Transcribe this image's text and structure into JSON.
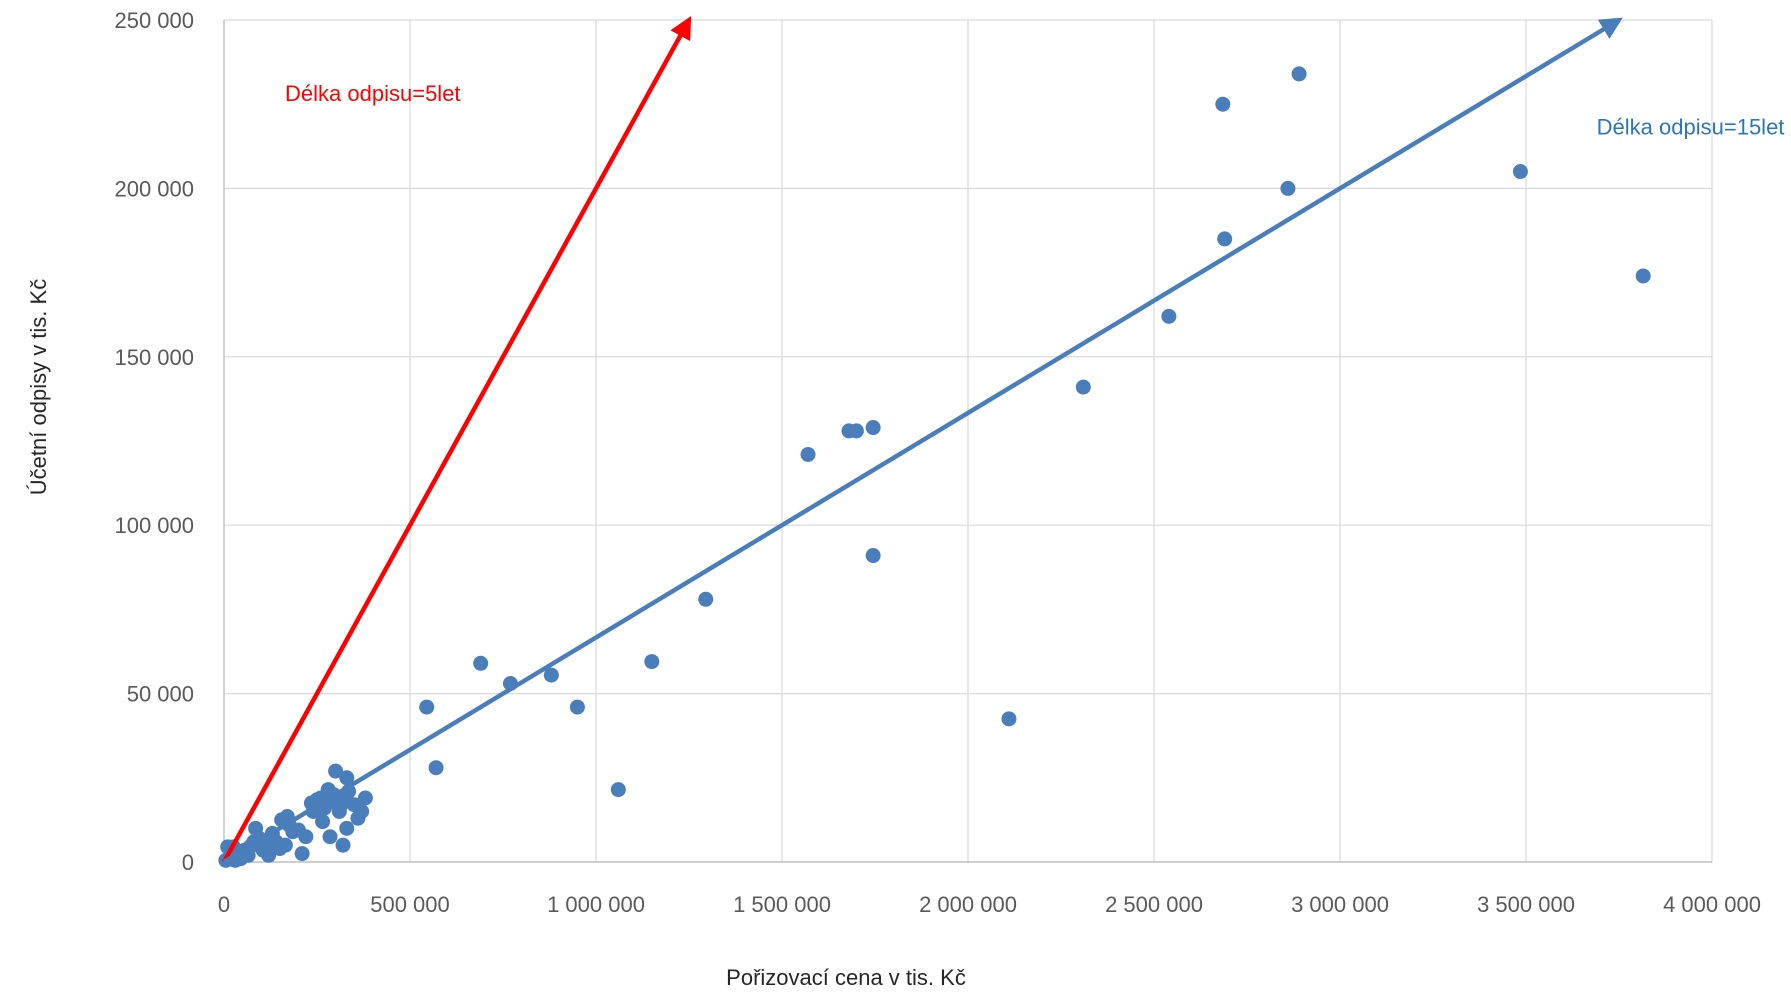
{
  "chart_data": {
    "type": "scatter",
    "title": "",
    "xlabel": "Pořizovací cena v tis. Kč",
    "ylabel": "Účetní odpisy  v tis. Kč",
    "xlim": [
      0,
      4000000
    ],
    "ylim": [
      0,
      250000
    ],
    "x_ticks": [
      0,
      500000,
      1000000,
      1500000,
      2000000,
      2500000,
      3000000,
      3500000,
      4000000
    ],
    "x_tick_labels": [
      "0",
      "500 000",
      "1 000 000",
      "1 500 000",
      "2 000 000",
      "2 500 000",
      "3 000 000",
      "3 500 000",
      "4 000 000"
    ],
    "y_ticks": [
      0,
      50000,
      100000,
      150000,
      200000,
      250000
    ],
    "y_tick_labels": [
      "0",
      "50 000",
      "100 000",
      "150 000",
      "200 000",
      "250 000"
    ],
    "grid": true,
    "marker_color": "#4a7ebb",
    "series": [
      {
        "points": [
          [
            3815000,
            174000
          ],
          [
            3485000,
            205000
          ],
          [
            2890000,
            234000
          ],
          [
            2860000,
            200000
          ],
          [
            2685000,
            225000
          ],
          [
            2690000,
            185000
          ],
          [
            2540000,
            162000
          ],
          [
            2310000,
            141000
          ],
          [
            2110000,
            42500
          ],
          [
            1745000,
            129000
          ],
          [
            1745000,
            91000
          ],
          [
            1700000,
            128000
          ],
          [
            1680000,
            128000
          ],
          [
            1570000,
            121000
          ],
          [
            1295000,
            78000
          ],
          [
            1150000,
            59500
          ],
          [
            1060000,
            21500
          ],
          [
            950000,
            46000
          ],
          [
            880000,
            55500
          ],
          [
            770000,
            53000
          ],
          [
            690000,
            59000
          ],
          [
            570000,
            28000
          ],
          [
            545000,
            46000
          ],
          [
            380000,
            19000
          ],
          [
            370000,
            15000
          ],
          [
            360000,
            13000
          ],
          [
            350000,
            17000
          ],
          [
            335000,
            21000
          ],
          [
            330000,
            25000
          ],
          [
            330000,
            10000
          ],
          [
            320000,
            5000
          ],
          [
            320000,
            19000
          ],
          [
            315000,
            17000
          ],
          [
            310000,
            15000
          ],
          [
            300000,
            27000
          ],
          [
            295000,
            20000
          ],
          [
            290000,
            18000
          ],
          [
            285000,
            7500
          ],
          [
            280000,
            21500
          ],
          [
            270000,
            16000
          ],
          [
            265000,
            12000
          ],
          [
            260000,
            19000
          ],
          [
            250000,
            18500
          ],
          [
            240000,
            15000
          ],
          [
            235000,
            17500
          ],
          [
            220000,
            7500
          ],
          [
            210000,
            2500
          ],
          [
            200000,
            9500
          ],
          [
            185000,
            9000
          ],
          [
            175000,
            11000
          ],
          [
            170000,
            13500
          ],
          [
            165000,
            5000
          ],
          [
            155000,
            12500
          ],
          [
            150000,
            4000
          ],
          [
            140000,
            6000
          ],
          [
            130000,
            8500
          ],
          [
            120000,
            2000
          ],
          [
            115000,
            5000
          ],
          [
            105000,
            3500
          ],
          [
            95000,
            7000
          ],
          [
            85000,
            10000
          ],
          [
            80000,
            6000
          ],
          [
            70000,
            4500
          ],
          [
            65000,
            2000
          ],
          [
            55000,
            3500
          ],
          [
            45000,
            1000
          ],
          [
            40000,
            2500
          ],
          [
            30000,
            500
          ],
          [
            25000,
            4500
          ],
          [
            15000,
            1500
          ],
          [
            10000,
            4500
          ],
          [
            5000,
            500
          ]
        ]
      }
    ],
    "annotations": [
      {
        "text": "Délka odpisu=5let",
        "color": "#ff0000",
        "x_from": 0,
        "y_from": 0,
        "x_to": 1250000,
        "y_to": 250000,
        "label_x": 400000,
        "label_y": 226000,
        "label_anchor": "middle"
      },
      {
        "text": "Délka odpisu=15let",
        "color": "#2e75b6",
        "x_from": 0,
        "y_from": 0,
        "x_to": 3750000,
        "y_to": 250000,
        "label_x": 3690000,
        "label_y": 216000,
        "label_anchor": "start"
      }
    ]
  }
}
